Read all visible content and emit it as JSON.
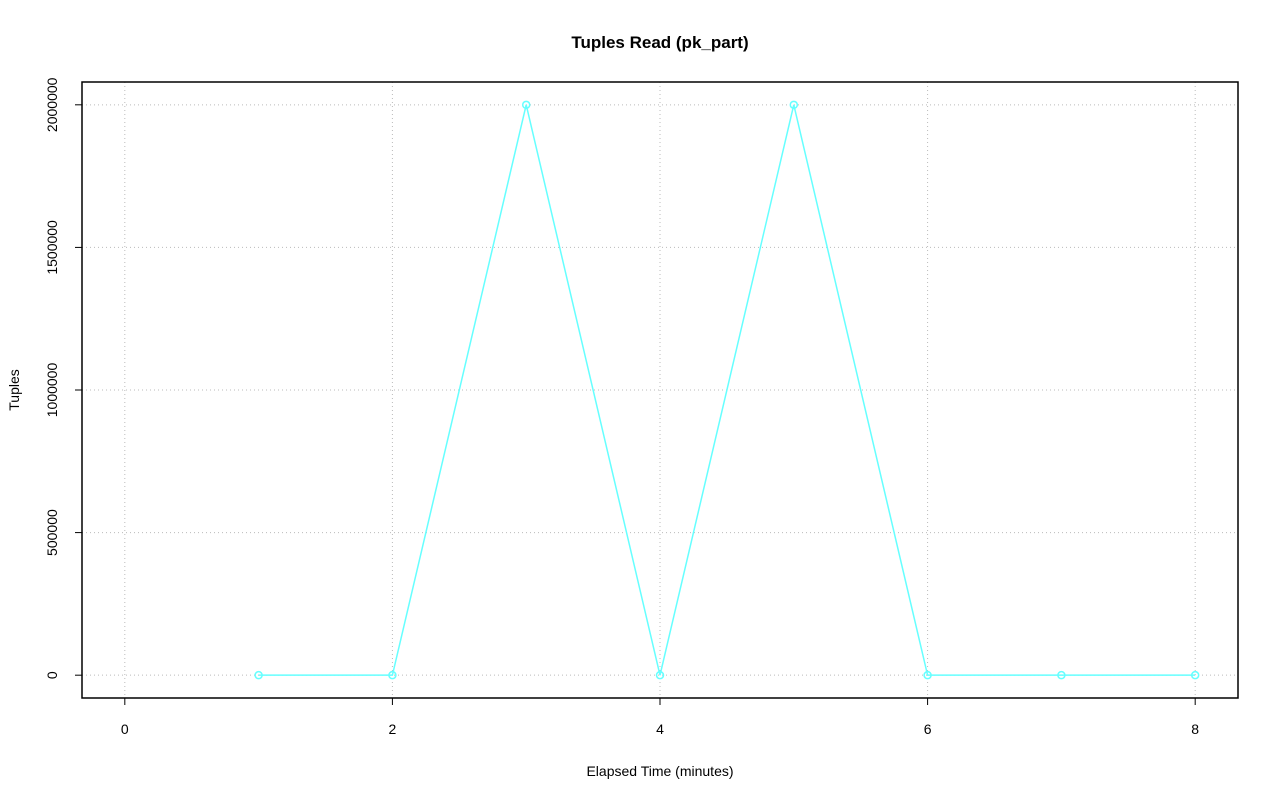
{
  "chart_data": {
    "type": "line",
    "title": "Tuples Read (pk_part)",
    "x_label": "Elapsed Time (minutes)",
    "y_label": "Tuples",
    "x": [
      1,
      2,
      3,
      4,
      5,
      6,
      7,
      8
    ],
    "series": [
      {
        "color": "#66ffff",
        "values": [
          0,
          0,
          2000000,
          0,
          2000000,
          0,
          0,
          0
        ]
      }
    ],
    "xlim": [
      -0.32,
      8.32
    ],
    "xticks": [
      0,
      2,
      4,
      6,
      8
    ],
    "ylim": [
      -80000,
      2080000
    ],
    "yticks": [
      0,
      500000,
      1000000,
      1500000,
      2000000
    ],
    "grid": true,
    "markers": true
  }
}
